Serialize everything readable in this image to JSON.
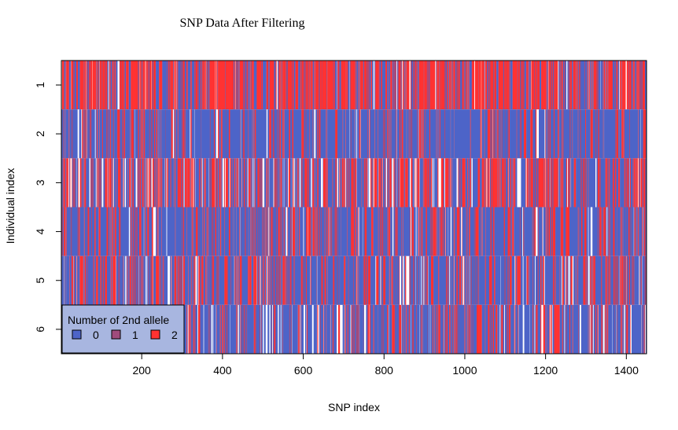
{
  "chart_data": {
    "type": "heatmap",
    "title": "SNP Data After Filtering",
    "xlabel": "SNP index",
    "ylabel": "Individual index",
    "xlim": [
      1,
      1450
    ],
    "n_snps": 1450,
    "individuals": [
      "1",
      "2",
      "3",
      "4",
      "5",
      "6"
    ],
    "x_ticks": [
      200,
      400,
      600,
      800,
      1000,
      1200,
      1400
    ],
    "y_ticks": [
      1,
      2,
      3,
      4,
      5,
      6
    ],
    "legend": {
      "title": "Number of 2nd allele",
      "position": "bottom-left",
      "entries": [
        {
          "label": "0",
          "color": "#4d64c8"
        },
        {
          "label": "1",
          "color": "#a04b7c"
        },
        {
          "label": "2",
          "color": "#ff3232"
        }
      ]
    },
    "missing_color": "#ffffff",
    "row_composition": [
      {
        "individual": "1",
        "p0": 0.28,
        "p1": 0.1,
        "p2": 0.58,
        "p_missing": 0.04
      },
      {
        "individual": "2",
        "p0": 0.7,
        "p1": 0.1,
        "p2": 0.17,
        "p_missing": 0.03
      },
      {
        "individual": "3",
        "p0": 0.38,
        "p1": 0.1,
        "p2": 0.4,
        "p_missing": 0.12
      },
      {
        "individual": "4",
        "p0": 0.63,
        "p1": 0.1,
        "p2": 0.24,
        "p_missing": 0.03
      },
      {
        "individual": "5",
        "p0": 0.56,
        "p1": 0.1,
        "p2": 0.24,
        "p_missing": 0.1
      },
      {
        "individual": "6",
        "p0": 0.6,
        "p1": 0.1,
        "p2": 0.21,
        "p_missing": 0.09
      }
    ],
    "grid": false
  }
}
